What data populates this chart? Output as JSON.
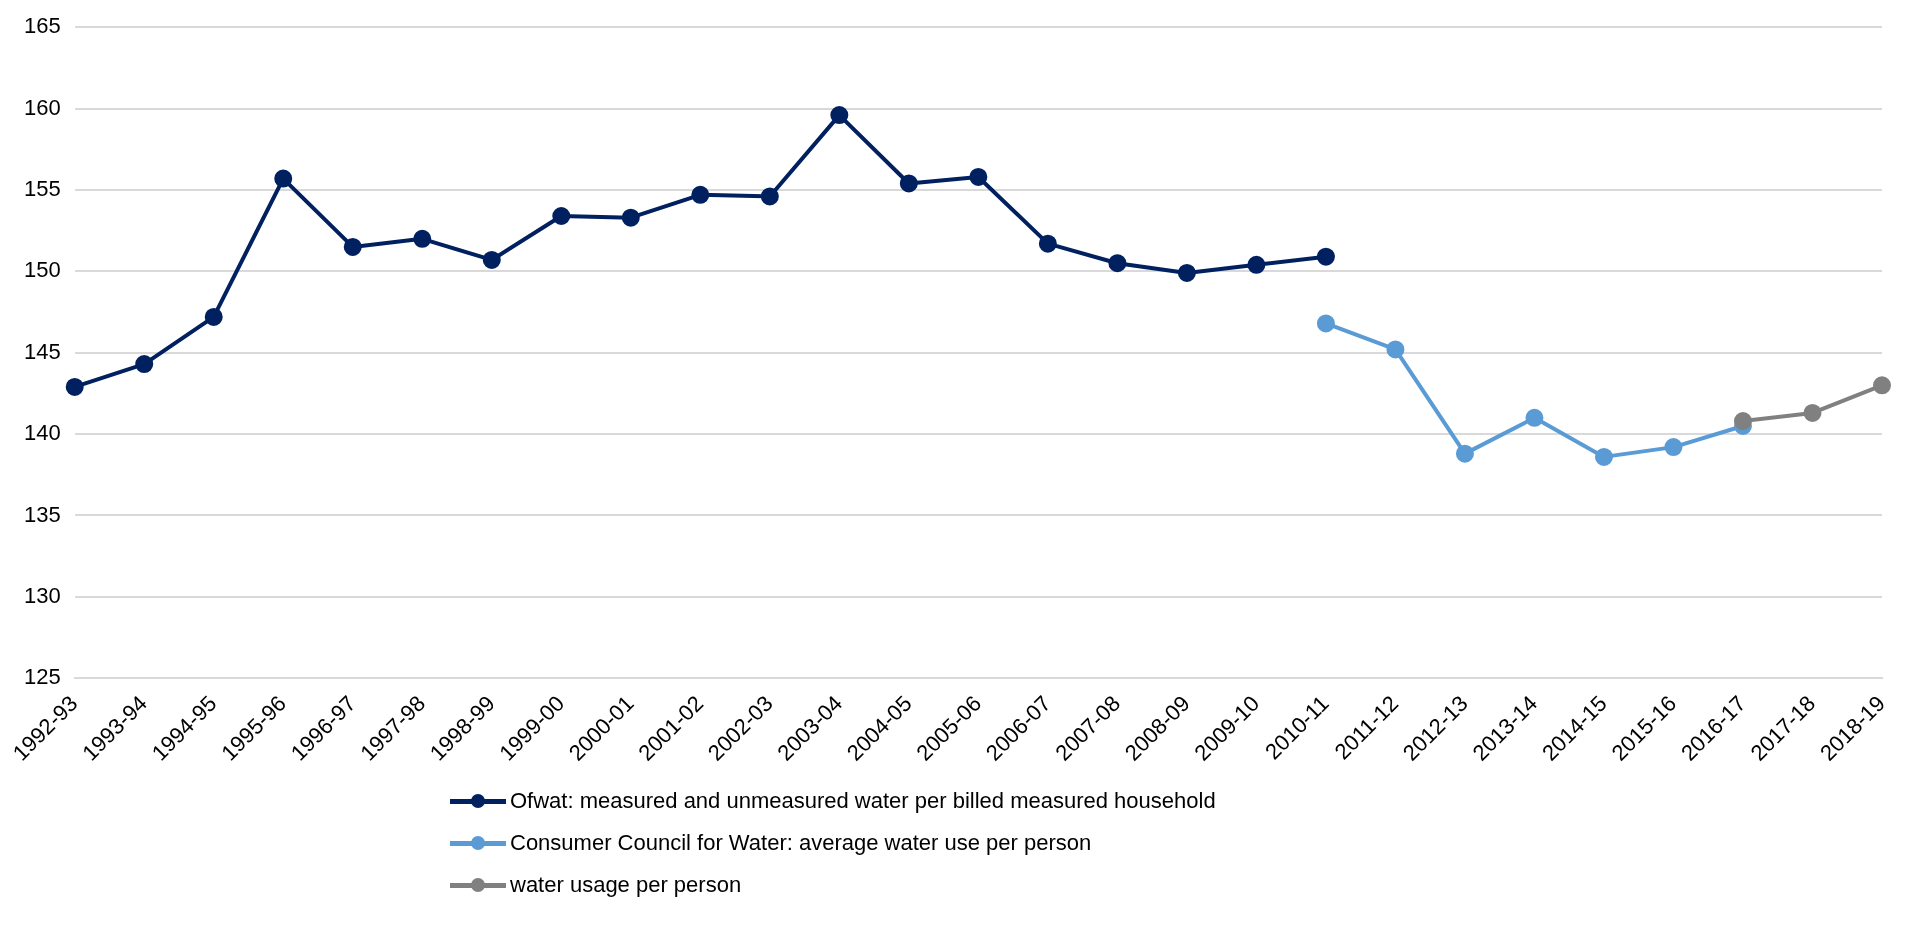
{
  "chart_data": {
    "type": "line",
    "categories": [
      "1992-93",
      "1993-94",
      "1994-95",
      "1995-96",
      "1996-97",
      "1997-98",
      "1998-99",
      "1999-00",
      "2000-01",
      "2001-02",
      "2002-03",
      "2003-04",
      "2004-05",
      "2005-06",
      "2006-07",
      "2007-08",
      "2008-09",
      "2009-10",
      "2010-11",
      "2011-12",
      "2012-13",
      "2013-14",
      "2014-15",
      "2015-16",
      "2016-17",
      "2017-18",
      "2018-19"
    ],
    "series": [
      {
        "name": "Ofwat: measured and unmeasured water per billed measured household",
        "color": "#002060",
        "values": [
          142.9,
          144.3,
          147.2,
          155.7,
          151.5,
          152.0,
          150.7,
          153.4,
          153.3,
          154.7,
          154.6,
          159.6,
          155.4,
          155.8,
          151.7,
          150.5,
          149.9,
          150.4,
          150.9,
          null,
          null,
          null,
          null,
          null,
          null,
          null,
          null
        ]
      },
      {
        "name": "Consumer Council for Water: average water use per person",
        "color": "#5b9bd5",
        "values": [
          null,
          null,
          null,
          null,
          null,
          null,
          null,
          null,
          null,
          null,
          null,
          null,
          null,
          null,
          null,
          null,
          null,
          null,
          146.8,
          145.2,
          138.8,
          141.0,
          138.6,
          139.2,
          140.5,
          null,
          null
        ]
      },
      {
        "name": "water usage per person",
        "color": "#808080",
        "values": [
          null,
          null,
          null,
          null,
          null,
          null,
          null,
          null,
          null,
          null,
          null,
          null,
          null,
          null,
          null,
          null,
          null,
          null,
          null,
          null,
          null,
          null,
          null,
          null,
          140.8,
          141.3,
          143.0
        ]
      }
    ],
    "ylim": [
      125,
      165
    ],
    "yticks": [
      125,
      130,
      135,
      140,
      145,
      150,
      155,
      160,
      165
    ],
    "grid": "y",
    "legend": "bottom",
    "marker": "circle",
    "line_style": "solid"
  }
}
